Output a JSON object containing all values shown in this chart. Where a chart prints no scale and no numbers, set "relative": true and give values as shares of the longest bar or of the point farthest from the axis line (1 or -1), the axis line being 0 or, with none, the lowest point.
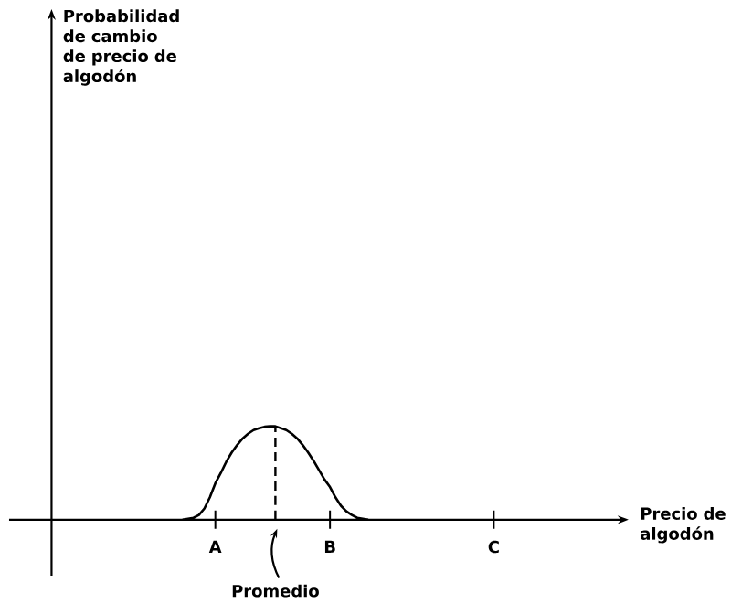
{
  "chart_data": {
    "type": "line",
    "relative": true,
    "xlabel": "Precio de algodón",
    "annotations": [
      "Probabilidad de cambio de precio de algodón",
      "Promedio"
    ],
    "categories": [
      null,
      null,
      null,
      null,
      null,
      null,
      null,
      null,
      null,
      null,
      null,
      null,
      null,
      null,
      null,
      null,
      null,
      null,
      null,
      null,
      null,
      null,
      null,
      null,
      null,
      null,
      null,
      null,
      null,
      null,
      "A",
      null,
      null,
      null,
      null,
      null,
      null,
      null,
      null,
      null,
      null,
      null,
      null,
      null,
      null,
      null,
      null,
      null,
      null,
      null,
      null,
      "B",
      null,
      null,
      null,
      null,
      null,
      null,
      null,
      null,
      null,
      null,
      null,
      null,
      null,
      null,
      null,
      null,
      null,
      null,
      null,
      null,
      null,
      null,
      null,
      null,
      null,
      null,
      null,
      null,
      null,
      "C",
      null,
      null,
      null,
      null,
      null,
      null,
      null,
      null,
      null,
      null,
      null,
      null,
      null,
      null,
      null,
      null,
      null,
      null,
      null
    ],
    "series": [
      {
        "color": "#000000",
        "values": [
          null,
          null,
          null,
          null,
          null,
          null,
          null,
          null,
          null,
          null,
          null,
          null,
          null,
          null,
          null,
          null,
          null,
          null,
          null,
          null,
          null,
          null,
          null,
          null,
          0,
          0.01,
          0.02,
          0.05,
          0.12,
          0.24,
          0.39,
          0.5,
          0.62,
          0.72,
          0.8,
          0.87,
          0.92,
          0.96,
          0.98,
          0.995,
          1,
          1,
          0.98,
          0.96,
          0.92,
          0.87,
          0.8,
          0.72,
          0.63,
          0.53,
          0.43,
          0.35,
          0.24,
          0.15,
          0.09,
          0.05,
          0.02,
          0.01,
          0,
          null,
          null,
          null,
          null,
          null,
          null,
          null,
          null,
          null,
          null,
          null,
          null,
          null,
          null,
          null,
          null,
          null,
          null,
          null,
          null,
          null,
          null,
          null,
          null,
          null,
          null,
          null,
          null,
          null,
          null,
          null,
          null,
          null,
          null,
          null,
          null,
          null,
          null,
          null,
          null,
          null,
          null
        ]
      }
    ],
    "tick_labels": "x",
    "marker": "none",
    "line_style": "solid"
  }
}
